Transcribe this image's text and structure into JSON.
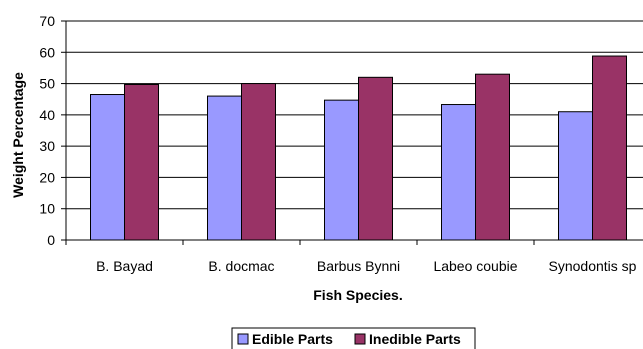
{
  "chart_data": {
    "type": "bar",
    "categories": [
      "B. Bayad",
      "B. docmac",
      "Barbus Bynni",
      "Labeo coubie",
      "Synodontis sp"
    ],
    "series": [
      {
        "name": "Edible Parts",
        "values": [
          46.5,
          46,
          44.7,
          43.3,
          41
        ],
        "color": "#9999ff"
      },
      {
        "name": "Inedible Parts",
        "values": [
          49.7,
          50,
          52,
          53,
          58.8
        ],
        "color": "#993366"
      }
    ],
    "title": "",
    "xlabel": "Fish Species.",
    "ylabel": "Weight Percentage",
    "ylim": [
      0,
      70
    ],
    "yticks": [
      0,
      10,
      20,
      30,
      40,
      50,
      60,
      70
    ],
    "grid": true,
    "legend_position": "bottom"
  }
}
